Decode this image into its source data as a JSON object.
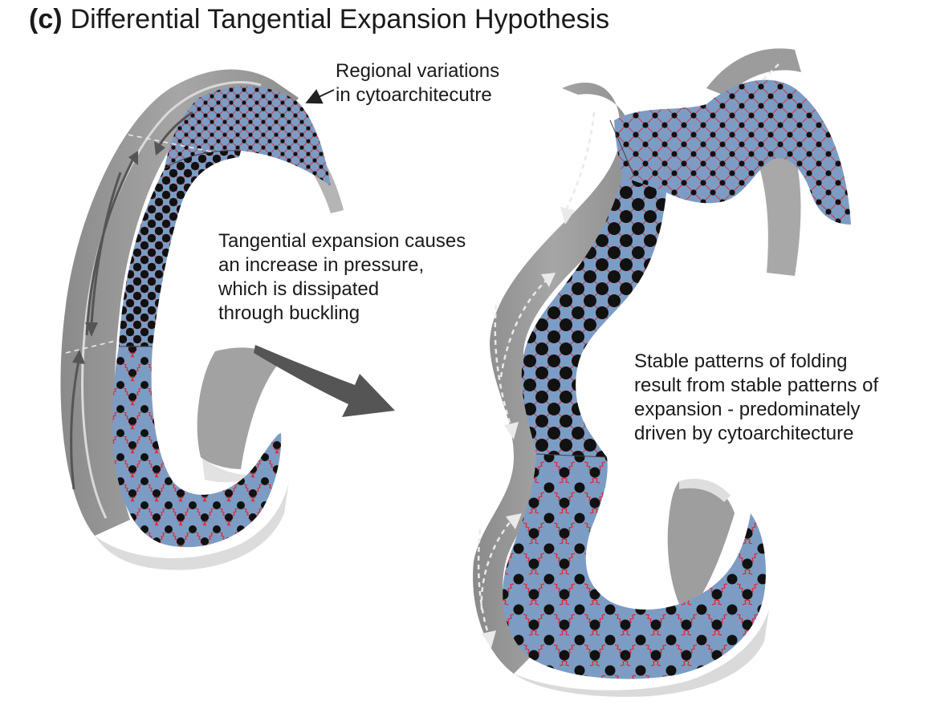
{
  "figure": {
    "panel_label": "(c)",
    "title": "Differential Tangential Expansion Hypothesis",
    "annotations": {
      "regional": {
        "lines": [
          "Regional variations",
          "in cytoarchitecutre"
        ]
      },
      "tangential": {
        "lines": [
          "Tangential expansion causes",
          "an increase in pressure,",
          "which is dissipated",
          "through buckling"
        ]
      },
      "stable": {
        "lines": [
          "Stable patterns of folding",
          "result from stable patterns of",
          "expansion - predominately",
          "driven by cytoarchitecture"
        ]
      }
    },
    "colors": {
      "ribbon_side": "#9a9a9a",
      "ribbon_side_dark": "#7f7f7f",
      "ribbon_highlight": "#d4d4d4",
      "tissue_fill": "#7c9cc4",
      "cell_dot": "#111111",
      "spring_line": "#e0262b",
      "arrow_dark": "#555555"
    }
  }
}
